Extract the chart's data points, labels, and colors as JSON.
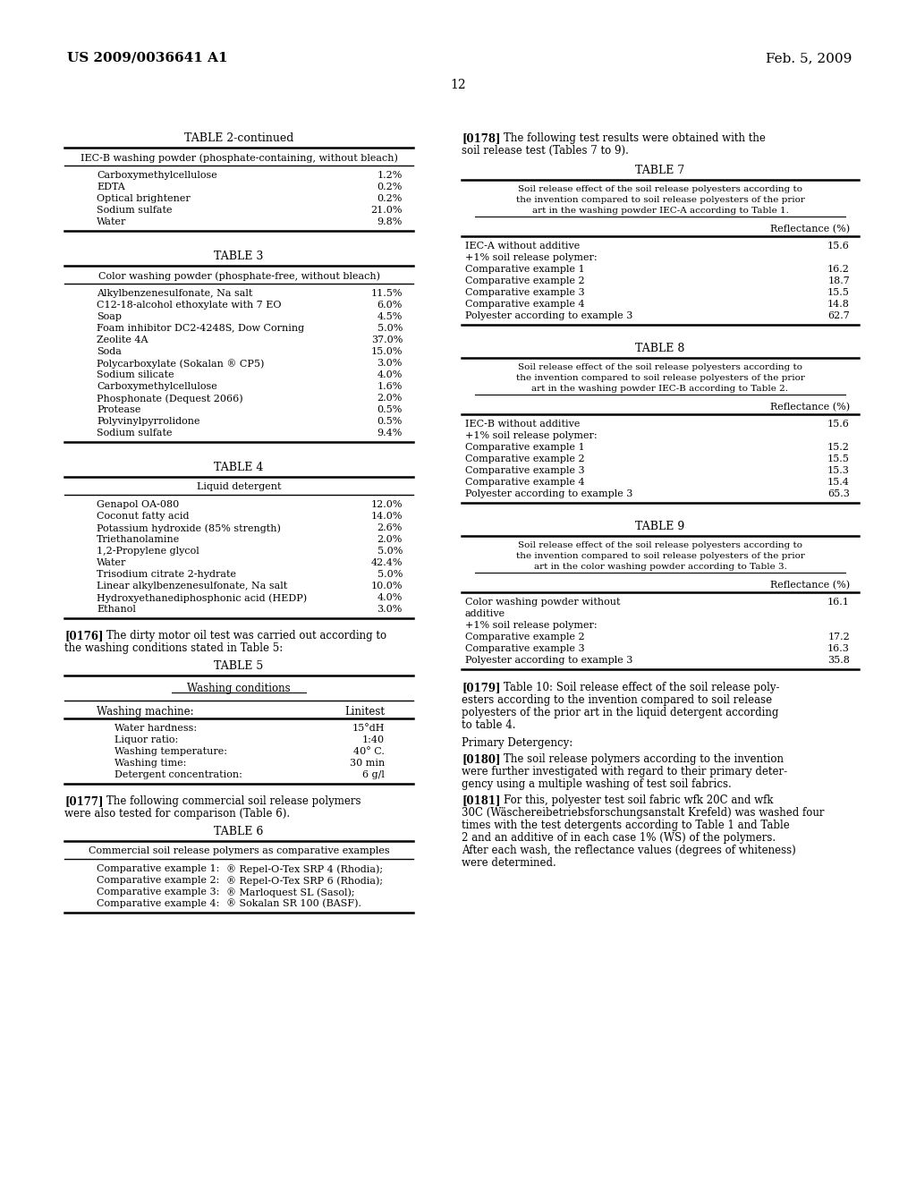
{
  "bg_color": "#ffffff",
  "text_color": "#1a1a1a",
  "header_left": "US 2009/0036641 A1",
  "header_right": "Feb. 5, 2009",
  "page_number": "12",
  "left_column": {
    "table2_continued": {
      "title": "TABLE 2-continued",
      "subtitle": "IEC-B washing powder (phosphate-containing, without bleach)",
      "rows": [
        [
          "Carboxymethylcellulose",
          "1.2%"
        ],
        [
          "EDTA",
          "0.2%"
        ],
        [
          "Optical brightener",
          "0.2%"
        ],
        [
          "Sodium sulfate",
          "21.0%"
        ],
        [
          "Water",
          "9.8%"
        ]
      ]
    },
    "table3": {
      "title": "TABLE 3",
      "subtitle": "Color washing powder (phosphate-free, without bleach)",
      "rows": [
        [
          "Alkylbenzenesulfonate, Na salt",
          "11.5%"
        ],
        [
          "C12-18-alcohol ethoxylate with 7 EO",
          "6.0%"
        ],
        [
          "Soap",
          "4.5%"
        ],
        [
          "Foam inhibitor DC2-4248S, Dow Corning",
          "5.0%"
        ],
        [
          "Zeolite 4A",
          "37.0%"
        ],
        [
          "Soda",
          "15.0%"
        ],
        [
          "Polycarboxylate (Sokalan ® CP5)",
          "3.0%"
        ],
        [
          "Sodium silicate",
          "4.0%"
        ],
        [
          "Carboxymethylcellulose",
          "1.6%"
        ],
        [
          "Phosphonate (Dequest 2066)",
          "2.0%"
        ],
        [
          "Protease",
          "0.5%"
        ],
        [
          "Polyvinylpyrrolidone",
          "0.5%"
        ],
        [
          "Sodium sulfate",
          "9.4%"
        ]
      ]
    },
    "table4": {
      "title": "TABLE 4",
      "subtitle": "Liquid detergent",
      "rows": [
        [
          "Genapol OA-080",
          "12.0%"
        ],
        [
          "Coconut fatty acid",
          "14.0%"
        ],
        [
          "Potassium hydroxide (85% strength)",
          "2.6%"
        ],
        [
          "Triethanolamine",
          "2.0%"
        ],
        [
          "1,2-Propylene glycol",
          "5.0%"
        ],
        [
          "Water",
          "42.4%"
        ],
        [
          "Trisodium citrate 2-hydrate",
          "5.0%"
        ],
        [
          "Linear alkylbenzenesulfonate, Na salt",
          "10.0%"
        ],
        [
          "Hydroxyethanediphosphonic acid (HEDP)",
          "4.0%"
        ],
        [
          "Ethanol",
          "3.0%"
        ]
      ]
    },
    "table5": {
      "title": "TABLE 5",
      "col_header_left": "Washing conditions",
      "col1": "Washing machine:",
      "col2": "Linitest",
      "rows": [
        [
          "Water hardness:",
          "15°dH"
        ],
        [
          "Liquor ratio:",
          "1:40"
        ],
        [
          "Washing temperature:",
          "40° C."
        ],
        [
          "Washing time:",
          "30 min"
        ],
        [
          "Detergent concentration:",
          "6 g/l"
        ]
      ]
    },
    "table6": {
      "title": "TABLE 6",
      "subtitle": "Commercial soil release polymers as comparative examples",
      "rows": [
        [
          "Comparative example 1:",
          "® Repel-O-Tex SRP 4 (Rhodia);"
        ],
        [
          "Comparative example 2:",
          "® Repel-O-Tex SRP 6 (Rhodia);"
        ],
        [
          "Comparative example 3:",
          "® Marloquest SL (Sasol);"
        ],
        [
          "Comparative example 4:",
          "® Sokalan SR 100 (BASF)."
        ]
      ]
    }
  },
  "right_column": {
    "table7": {
      "title": "TABLE 7",
      "subtitle_lines": [
        "Soil release effect of the soil release polyesters according to",
        "the invention compared to soil release polyesters of the prior",
        "art in the washing powder IEC-A according to Table 1."
      ],
      "col_header": "Reflectance (%)",
      "rows": [
        [
          "IEC-A without additive",
          "15.6"
        ],
        [
          "+1% soil release polymer:",
          ""
        ],
        [
          "Comparative example 1",
          "16.2"
        ],
        [
          "Comparative example 2",
          "18.7"
        ],
        [
          "Comparative example 3",
          "15.5"
        ],
        [
          "Comparative example 4",
          "14.8"
        ],
        [
          "Polyester according to example 3",
          "62.7"
        ]
      ]
    },
    "table8": {
      "title": "TABLE 8",
      "subtitle_lines": [
        "Soil release effect of the soil release polyesters according to",
        "the invention compared to soil release polyesters of the prior",
        "art in the washing powder IEC-B according to Table 2."
      ],
      "col_header": "Reflectance (%)",
      "rows": [
        [
          "IEC-B without additive",
          "15.6"
        ],
        [
          "+1% soil release polymer:",
          ""
        ],
        [
          "Comparative example 1",
          "15.2"
        ],
        [
          "Comparative example 2",
          "15.5"
        ],
        [
          "Comparative example 3",
          "15.3"
        ],
        [
          "Comparative example 4",
          "15.4"
        ],
        [
          "Polyester according to example 3",
          "65.3"
        ]
      ]
    },
    "table9": {
      "title": "TABLE 9",
      "subtitle_lines": [
        "Soil release effect of the soil release polyesters according to",
        "the invention compared to soil release polyesters of the prior",
        "art in the color washing powder according to Table 3."
      ],
      "col_header": "Reflectance (%)",
      "rows": [
        [
          "Color washing powder without",
          "16.1"
        ],
        [
          "additive",
          ""
        ],
        [
          "+1% soil release polymer:",
          ""
        ],
        [
          "Comparative example 2",
          "17.2"
        ],
        [
          "Comparative example 3",
          "16.3"
        ],
        [
          "Polyester according to example 3",
          "35.8"
        ]
      ]
    }
  }
}
